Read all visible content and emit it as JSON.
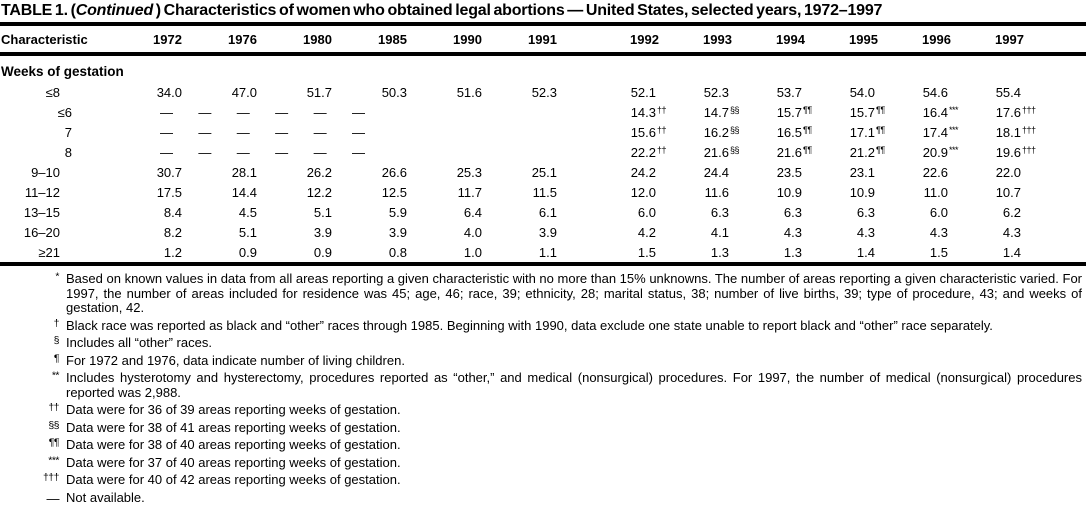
{
  "title": {
    "prefix": "TABLE 1. (",
    "continued": "Continued",
    "suffix": " ) Characteristics of women who obtained legal abortions — United States, selected years, 1972–1997"
  },
  "table": {
    "header": {
      "characteristic": "Characteristic",
      "years": [
        "1972",
        "1976",
        "1980",
        "1985",
        "1990",
        "1991",
        "1992",
        "1993",
        "1994",
        "1995",
        "1996",
        "1997"
      ]
    },
    "section_label": "Weeks of gestation",
    "not_available_symbol": "—",
    "rows": [
      {
        "label": "≤8",
        "indent": 1,
        "cells": [
          "34.0",
          "47.0",
          "51.7",
          "50.3",
          "51.6",
          "52.3",
          "52.1",
          "52.3",
          "53.7",
          "54.0",
          "54.6",
          "55.4"
        ]
      },
      {
        "label": "≤6",
        "indent": 2,
        "na_first_six": true,
        "cells": [
          {
            "v": "14.3",
            "sup": "††"
          },
          {
            "v": "14.7",
            "sup": "§§"
          },
          {
            "v": "15.7",
            "sup": "¶¶"
          },
          {
            "v": "15.7",
            "sup": "¶¶"
          },
          {
            "v": "16.4",
            "sup": "***"
          },
          {
            "v": "17.6",
            "sup": "†††"
          }
        ]
      },
      {
        "label": "7",
        "indent": 2,
        "na_first_six": true,
        "cells": [
          {
            "v": "15.6",
            "sup": "††"
          },
          {
            "v": "16.2",
            "sup": "§§"
          },
          {
            "v": "16.5",
            "sup": "¶¶"
          },
          {
            "v": "17.1",
            "sup": "¶¶"
          },
          {
            "v": "17.4",
            "sup": "***"
          },
          {
            "v": "18.1",
            "sup": "†††"
          }
        ]
      },
      {
        "label": "8",
        "indent": 2,
        "na_first_six": true,
        "cells": [
          {
            "v": "22.2",
            "sup": "††"
          },
          {
            "v": "21.6",
            "sup": "§§"
          },
          {
            "v": "21.6",
            "sup": "¶¶"
          },
          {
            "v": "21.2",
            "sup": "¶¶"
          },
          {
            "v": "20.9",
            "sup": "***"
          },
          {
            "v": "19.6",
            "sup": "†††"
          }
        ]
      },
      {
        "label": "9–10",
        "indent": 1,
        "cells": [
          "30.7",
          "28.1",
          "26.2",
          "26.6",
          "25.3",
          "25.1",
          "24.2",
          "24.4",
          "23.5",
          "23.1",
          "22.6",
          "22.0"
        ]
      },
      {
        "label": "11–12",
        "indent": 1,
        "cells": [
          "17.5",
          "14.4",
          "12.2",
          "12.5",
          "11.7",
          "11.5",
          "12.0",
          "11.6",
          "10.9",
          "10.9",
          "11.0",
          "10.7"
        ]
      },
      {
        "label": "13–15",
        "indent": 1,
        "cells": [
          "8.4",
          "4.5",
          "5.1",
          "5.9",
          "6.4",
          "6.1",
          "6.0",
          "6.3",
          "6.3",
          "6.3",
          "6.0",
          "6.2"
        ]
      },
      {
        "label": "16–20",
        "indent": 1,
        "cells": [
          "8.2",
          "5.1",
          "3.9",
          "3.9",
          "4.0",
          "3.9",
          "4.2",
          "4.1",
          "4.3",
          "4.3",
          "4.3",
          "4.3"
        ]
      },
      {
        "label": "≥21",
        "indent": 1,
        "cells": [
          "1.2",
          "0.9",
          "0.9",
          "0.8",
          "1.0",
          "1.1",
          "1.5",
          "1.3",
          "1.3",
          "1.4",
          "1.5",
          "1.4"
        ]
      }
    ]
  },
  "footnotes": [
    {
      "marker": "*",
      "text": "Based on known values in data from all areas reporting a given characteristic with no more than 15% unknowns. The number of areas reporting a given characteristic varied. For 1997, the number of areas included for residence was 45; age, 46; race, 39; ethnicity, 28; marital status, 38; number of live births, 39; type of procedure, 43; and weeks of gestation, 42."
    },
    {
      "marker": "†",
      "text": "Black race was reported as black and “other” races through 1985. Beginning with 1990, data exclude one state unable to report black and “other” race separately."
    },
    {
      "marker": "§",
      "text": "Includes all “other” races."
    },
    {
      "marker": "¶",
      "text": "For 1972 and 1976, data indicate number of living children."
    },
    {
      "marker": "**",
      "text": "Includes hysterotomy and hysterectomy, procedures reported as “other,” and medical (nonsurgical) procedures. For 1997, the number of medical (nonsurgical) procedures reported was 2,988."
    },
    {
      "marker": "††",
      "text": "Data were for 36 of 39 areas reporting weeks of gestation."
    },
    {
      "marker": "§§",
      "text": "Data were for 38 of 41 areas reporting weeks of gestation."
    },
    {
      "marker": "¶¶",
      "text": "Data were for 38 of 40 areas reporting weeks of gestation."
    },
    {
      "marker": "***",
      "text": "Data were for 37 of 40 areas reporting weeks of gestation."
    },
    {
      "marker": "†††",
      "text": "Data were for 40 of 42 areas reporting weeks of gestation."
    },
    {
      "marker": "—",
      "text": "Not available."
    }
  ]
}
